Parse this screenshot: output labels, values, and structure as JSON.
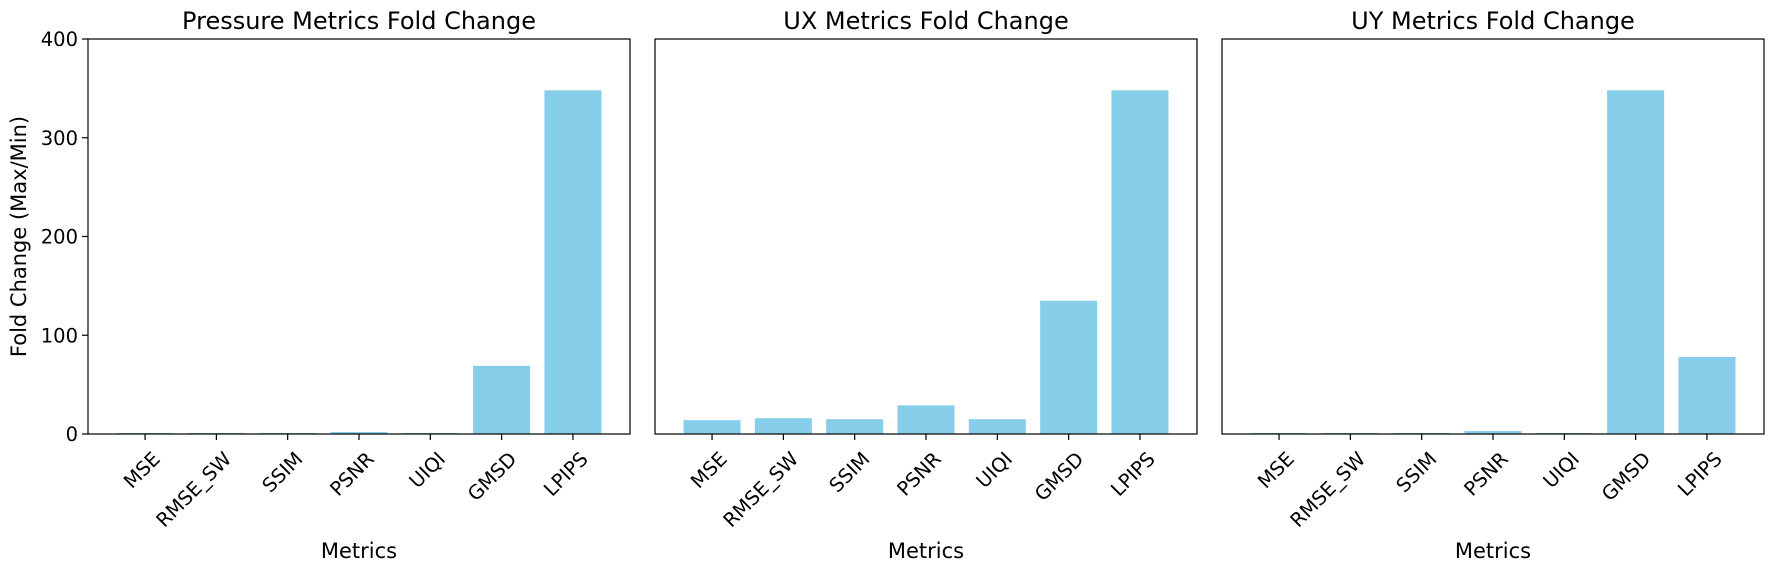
{
  "colors": {
    "bar": "#87ceeb",
    "axis": "#000000",
    "background": "#ffffff"
  },
  "chart_data": [
    {
      "type": "bar",
      "title": "Pressure Metrics Fold Change",
      "xlabel": "Metrics",
      "ylabel": "Fold Change (Max/Min)",
      "ylim": [
        0,
        400
      ],
      "yticks": [
        "0",
        "100",
        "200",
        "300",
        "400"
      ],
      "grid": false,
      "categories": [
        "MSE",
        "RMSE_SW",
        "SSIM",
        "PSNR",
        "UIQI",
        "GMSD",
        "LPIPS"
      ],
      "values": [
        1,
        1,
        1,
        2,
        1,
        69,
        348
      ]
    },
    {
      "type": "bar",
      "title": "UX Metrics Fold Change",
      "xlabel": "Metrics",
      "ylabel": "",
      "ylim": [
        0,
        400
      ],
      "yticks": [],
      "grid": false,
      "categories": [
        "MSE",
        "RMSE_SW",
        "SSIM",
        "PSNR",
        "UIQI",
        "GMSD",
        "LPIPS"
      ],
      "values": [
        14,
        16,
        15,
        29,
        15,
        135,
        348
      ]
    },
    {
      "type": "bar",
      "title": "UY Metrics Fold Change",
      "xlabel": "Metrics",
      "ylabel": "",
      "ylim": [
        0,
        400
      ],
      "yticks": [],
      "grid": false,
      "categories": [
        "MSE",
        "RMSE_SW",
        "SSIM",
        "PSNR",
        "UIQI",
        "GMSD",
        "LPIPS"
      ],
      "values": [
        1,
        1,
        1,
        3,
        1,
        348,
        78
      ]
    }
  ]
}
